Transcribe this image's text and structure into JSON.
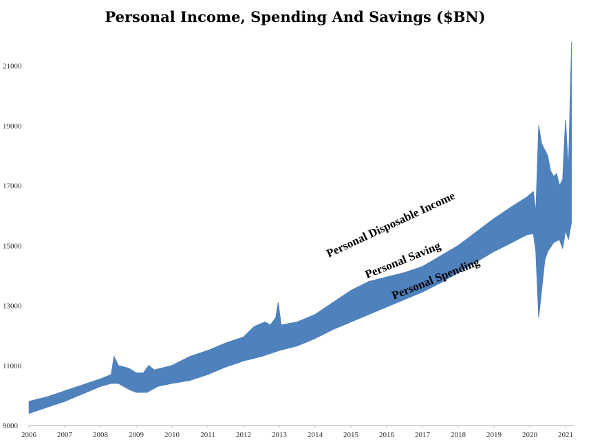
{
  "chart_data": {
    "type": "area",
    "title": "Personal Income, Spending And Savings ($BN)",
    "xlabel": "",
    "ylabel": "",
    "xlim": [
      2006.0,
      2021.25
    ],
    "ylim": [
      9000,
      22000
    ],
    "x_ticks": [
      "2006",
      "2007",
      "2008",
      "2009",
      "2010",
      "2011",
      "2012",
      "2013",
      "2014",
      "2015",
      "2016",
      "2017",
      "2018",
      "2019",
      "2020",
      "2021"
    ],
    "y_ticks": [
      9000,
      11000,
      13000,
      15000,
      17000,
      19000,
      21000
    ],
    "grid": false,
    "band_color": "#4f81bd",
    "series": [
      {
        "name": "Personal Disposable Income",
        "points": [
          [
            2006.0,
            9800
          ],
          [
            2006.5,
            9950
          ],
          [
            2007.0,
            10150
          ],
          [
            2007.5,
            10350
          ],
          [
            2008.0,
            10550
          ],
          [
            2008.3,
            10700
          ],
          [
            2008.38,
            11300
          ],
          [
            2008.5,
            11000
          ],
          [
            2008.8,
            10900
          ],
          [
            2009.0,
            10750
          ],
          [
            2009.2,
            10750
          ],
          [
            2009.35,
            11000
          ],
          [
            2009.5,
            10850
          ],
          [
            2010.0,
            11000
          ],
          [
            2010.5,
            11300
          ],
          [
            2011.0,
            11500
          ],
          [
            2011.5,
            11750
          ],
          [
            2012.0,
            11950
          ],
          [
            2012.3,
            12300
          ],
          [
            2012.6,
            12450
          ],
          [
            2012.75,
            12350
          ],
          [
            2012.9,
            12600
          ],
          [
            2012.97,
            13100
          ],
          [
            2013.05,
            12350
          ],
          [
            2013.5,
            12450
          ],
          [
            2014.0,
            12700
          ],
          [
            2014.5,
            13100
          ],
          [
            2015.0,
            13500
          ],
          [
            2015.5,
            13800
          ],
          [
            2016.0,
            13950
          ],
          [
            2016.5,
            14100
          ],
          [
            2017.0,
            14300
          ],
          [
            2017.5,
            14650
          ],
          [
            2018.0,
            15000
          ],
          [
            2018.5,
            15450
          ],
          [
            2019.0,
            15900
          ],
          [
            2019.5,
            16300
          ],
          [
            2019.9,
            16600
          ],
          [
            2020.1,
            16800
          ],
          [
            2020.17,
            16100
          ],
          [
            2020.25,
            19000
          ],
          [
            2020.33,
            18400
          ],
          [
            2020.5,
            18000
          ],
          [
            2020.58,
            17500
          ],
          [
            2020.67,
            17300
          ],
          [
            2020.75,
            17400
          ],
          [
            2020.83,
            17000
          ],
          [
            2020.92,
            17200
          ],
          [
            2021.0,
            19200
          ],
          [
            2021.08,
            17500
          ],
          [
            2021.17,
            21800
          ]
        ]
      },
      {
        "name": "Personal Spending",
        "points": [
          [
            2006.0,
            9400
          ],
          [
            2006.5,
            9600
          ],
          [
            2007.0,
            9800
          ],
          [
            2007.5,
            10050
          ],
          [
            2008.0,
            10300
          ],
          [
            2008.3,
            10400
          ],
          [
            2008.5,
            10400
          ],
          [
            2008.8,
            10200
          ],
          [
            2009.0,
            10100
          ],
          [
            2009.3,
            10100
          ],
          [
            2009.6,
            10300
          ],
          [
            2010.0,
            10400
          ],
          [
            2010.5,
            10500
          ],
          [
            2011.0,
            10700
          ],
          [
            2011.5,
            10950
          ],
          [
            2012.0,
            11150
          ],
          [
            2012.5,
            11300
          ],
          [
            2013.0,
            11500
          ],
          [
            2013.5,
            11650
          ],
          [
            2014.0,
            11900
          ],
          [
            2014.5,
            12200
          ],
          [
            2015.0,
            12450
          ],
          [
            2015.5,
            12700
          ],
          [
            2016.0,
            12950
          ],
          [
            2016.5,
            13200
          ],
          [
            2017.0,
            13450
          ],
          [
            2017.5,
            13750
          ],
          [
            2018.0,
            14100
          ],
          [
            2018.5,
            14450
          ],
          [
            2019.0,
            14800
          ],
          [
            2019.5,
            15100
          ],
          [
            2019.9,
            15350
          ],
          [
            2020.1,
            15400
          ],
          [
            2020.17,
            14800
          ],
          [
            2020.25,
            12600
          ],
          [
            2020.33,
            13500
          ],
          [
            2020.42,
            14500
          ],
          [
            2020.5,
            14800
          ],
          [
            2020.67,
            15100
          ],
          [
            2020.83,
            15200
          ],
          [
            2020.92,
            14900
          ],
          [
            2021.0,
            15500
          ],
          [
            2021.08,
            15200
          ],
          [
            2021.17,
            15800
          ]
        ]
      }
    ],
    "annotations": [
      {
        "text": "Personal Disposable Income",
        "x": 2014.38,
        "y": 14600,
        "rotation": -25
      },
      {
        "text": "Personal Saving",
        "x": 2015.45,
        "y": 13900,
        "rotation": -22
      },
      {
        "text": "Personal Spending",
        "x": 2016.2,
        "y": 13200,
        "rotation": -22
      }
    ]
  }
}
